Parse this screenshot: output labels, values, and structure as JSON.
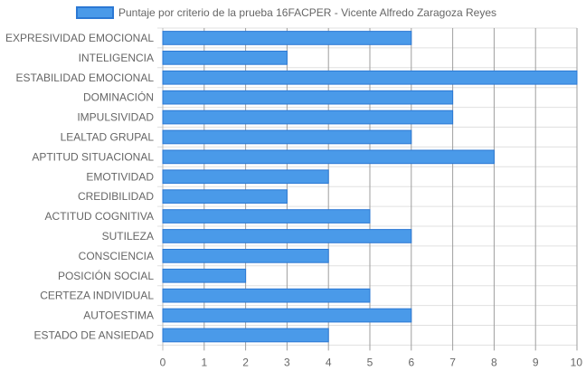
{
  "chart_data": {
    "type": "bar",
    "orientation": "horizontal",
    "categories": [
      "EXPRESIVIDAD EMOCIONAL",
      "INTELIGENCIA",
      "ESTABILIDAD EMOCIONAL",
      "DOMINACIÓN",
      "IMPULSIVIDAD",
      "LEALTAD GRUPAL",
      "APTITUD SITUACIONAL",
      "EMOTIVIDAD",
      "CREDIBILIDAD",
      "ACTITUD COGNITIVA",
      "SUTILEZA",
      "CONSCIENCIA",
      "POSICIÓN SOCIAL",
      "CERTEZA INDIVIDUAL",
      "AUTOESTIMA",
      "ESTADO DE ANSIEDAD"
    ],
    "series": [
      {
        "name": "Puntaje por criterio de la prueba 16FACPER - Vicente Alfredo Zaragoza Reyes",
        "values": [
          6,
          3,
          10,
          7,
          7,
          6,
          8,
          4,
          3,
          5,
          6,
          4,
          2,
          5,
          6,
          4
        ],
        "color": "#4a9ae9",
        "border_color": "#2b78d4"
      }
    ],
    "xlim": [
      0,
      10
    ],
    "x_ticks": [
      "0",
      "1",
      "2",
      "3",
      "4",
      "5",
      "6",
      "7",
      "8",
      "9",
      "10"
    ],
    "legend_position": "top",
    "grid": true,
    "grid_color": "#e0e0e0",
    "vertical_grid_color": "#9e9e9e"
  }
}
